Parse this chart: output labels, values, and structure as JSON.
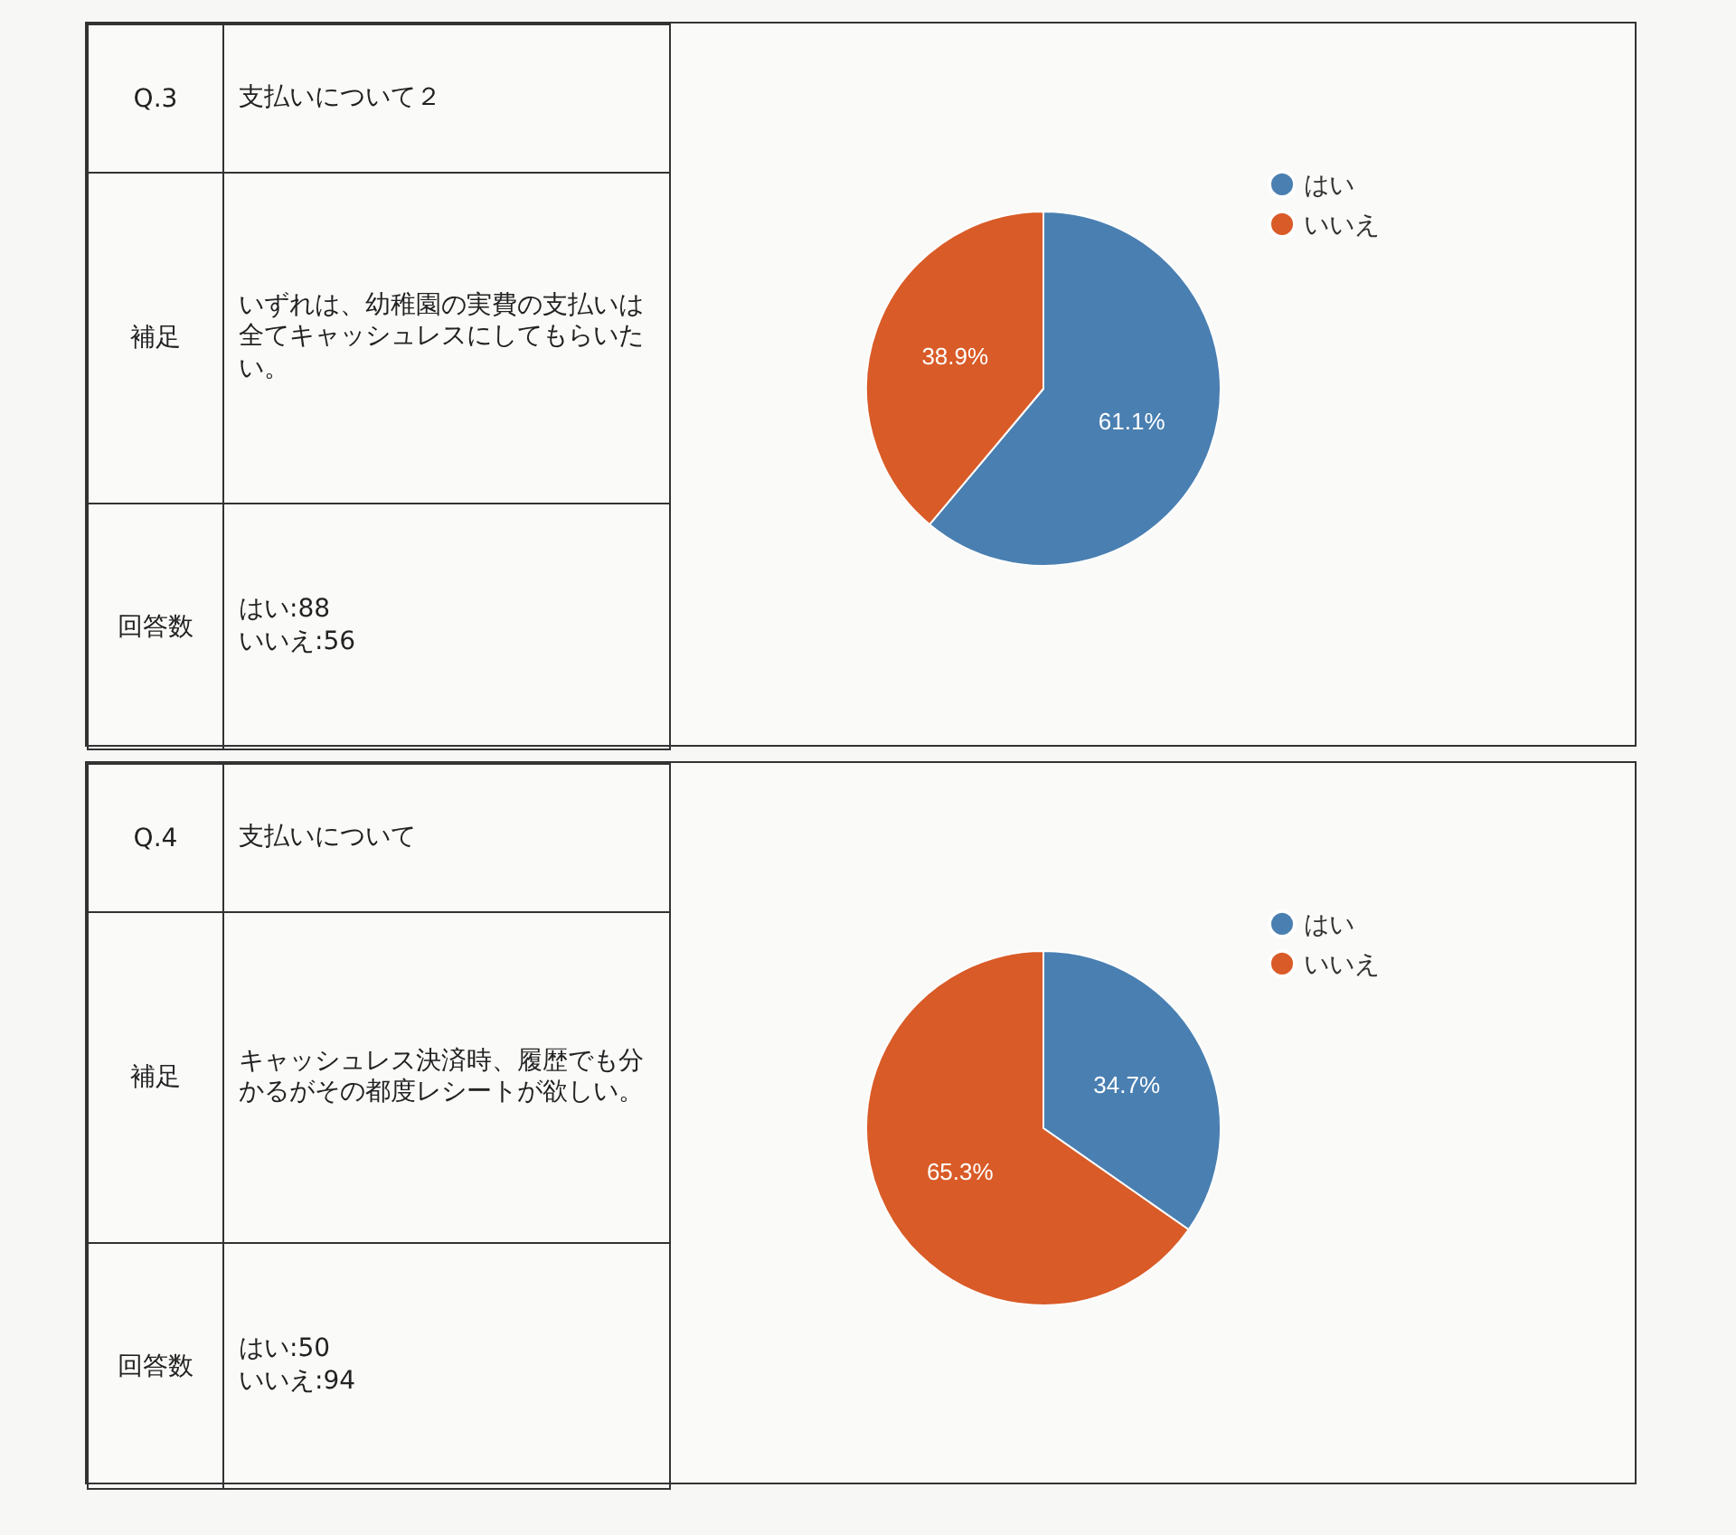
{
  "chart_data": [
    {
      "type": "pie",
      "categories": [
        "はい",
        "いいえ"
      ],
      "values": [
        61.1,
        38.9
      ],
      "colors": [
        "#4a7fb1",
        "#d95b27"
      ],
      "value_labels": [
        "61.1%",
        "38.9%"
      ],
      "legend": "top right",
      "annotations": [
        "Q.3",
        "支払いについて２",
        "補足",
        "いずれは、幼稚園の実費の支払いは全てキャッシュレスにしてもらいたい。",
        "回答数",
        "はい:88\nいいえ:56"
      ]
    },
    {
      "type": "pie",
      "categories": [
        "はい",
        "いいえ"
      ],
      "values": [
        34.7,
        65.3
      ],
      "colors": [
        "#4a7fb1",
        "#d95b27"
      ],
      "value_labels": [
        "34.7%",
        "65.3%"
      ],
      "legend": "top right",
      "annotations": [
        "Q.4",
        "支払いについて",
        "補足",
        "キャッシュレス決済時、履歴でも分かるがその都度レシートが欲しい。",
        "回答数",
        "はい:50\nいいえ:94"
      ]
    }
  ]
}
